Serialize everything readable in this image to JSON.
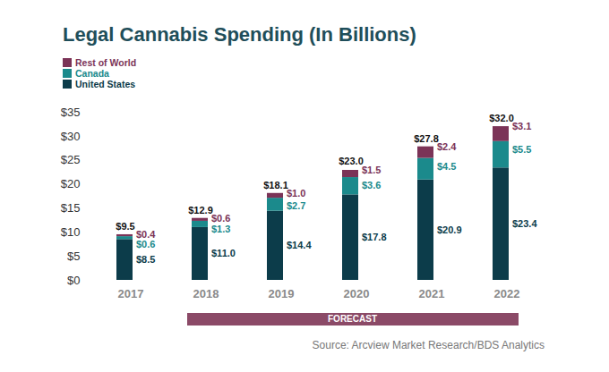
{
  "chart_data": {
    "type": "bar",
    "title": "Legal Cannabis Spending (In Billions)",
    "categories": [
      "2017",
      "2018",
      "2019",
      "2020",
      "2021",
      "2022"
    ],
    "series": [
      {
        "name": "United States",
        "color": "#0c3c4a",
        "values": [
          8.5,
          11.0,
          14.4,
          17.8,
          20.9,
          23.4
        ],
        "value_labels": [
          "$8.5",
          "$11.0",
          "$14.4",
          "$17.8",
          "$20.9",
          "$23.4"
        ]
      },
      {
        "name": "Canada",
        "color": "#1b8a8c",
        "values": [
          0.6,
          1.3,
          2.7,
          3.6,
          4.5,
          5.5
        ],
        "value_labels": [
          "$0.6",
          "$1.3",
          "$2.7",
          "$3.6",
          "$4.5",
          "$5.5"
        ]
      },
      {
        "name": "Rest of World",
        "color": "#7b3357",
        "values": [
          0.4,
          0.6,
          1.0,
          1.5,
          2.4,
          3.1
        ],
        "value_labels": [
          "$0.4",
          "$0.6",
          "$1.0",
          "$1.5",
          "$2.4",
          "$3.1"
        ]
      }
    ],
    "totals": [
      9.5,
      12.9,
      18.1,
      23.0,
      27.8,
      32.0
    ],
    "total_labels": [
      "$9.5",
      "$12.9",
      "$18.1",
      "$23.0",
      "$27.8",
      "$32.0"
    ],
    "ylim": [
      0,
      35
    ],
    "yticks": [
      {
        "value": 0,
        "label": "$0"
      },
      {
        "value": 5,
        "label": "$5"
      },
      {
        "value": 10,
        "label": "$10"
      },
      {
        "value": 15,
        "label": "$15"
      },
      {
        "value": 20,
        "label": "$20"
      },
      {
        "value": 25,
        "label": "$25"
      },
      {
        "value": 30,
        "label": "$30"
      },
      {
        "value": 35,
        "label": "$35"
      }
    ],
    "stacked": true,
    "data_labels": true,
    "grid": false,
    "legend": "top-left",
    "annotations": [
      {
        "text": "FORECAST",
        "from": "2018",
        "to": "2022"
      }
    ],
    "caption": "Source: Arcview Market Research/BDS Analytics"
  }
}
